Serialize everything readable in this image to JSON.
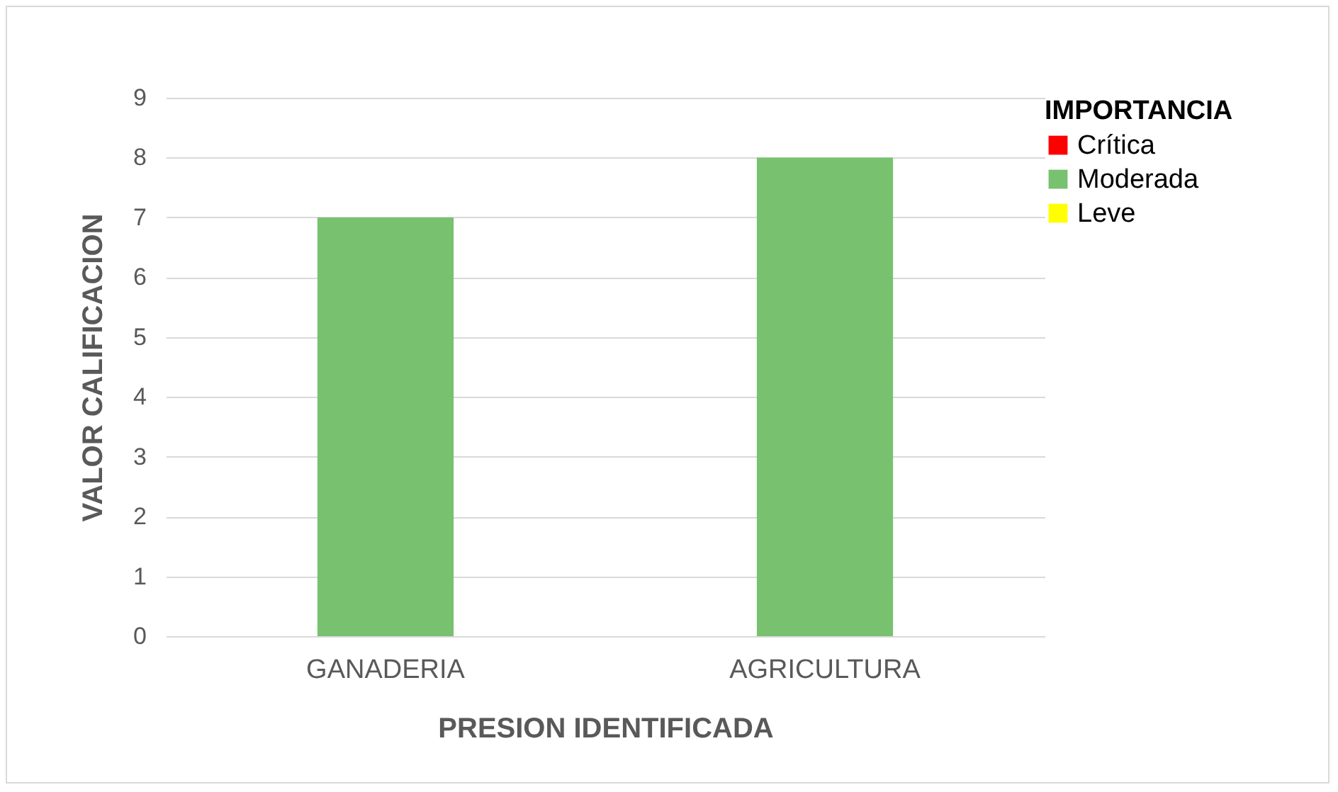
{
  "chart_data": {
    "type": "bar",
    "xlabel": "PRESION IDENTIFICADA",
    "ylabel": "VALOR CALIFICACION",
    "legend_title": "IMPORTANCIA",
    "categories": [
      "GANADERIA",
      "AGRICULTURA"
    ],
    "series": [
      {
        "name": "Crítica",
        "color": "#ff0000",
        "values": [
          null,
          null
        ]
      },
      {
        "name": "Moderada",
        "color": "#77c16f",
        "values": [
          7,
          8
        ]
      },
      {
        "name": "Leve",
        "color": "#ffff00",
        "values": [
          null,
          null
        ]
      }
    ],
    "ylim": [
      0,
      9
    ],
    "yticks": [
      0,
      1,
      2,
      3,
      4,
      5,
      6,
      7,
      8,
      9
    ],
    "grid": "y",
    "legend": "top right"
  }
}
